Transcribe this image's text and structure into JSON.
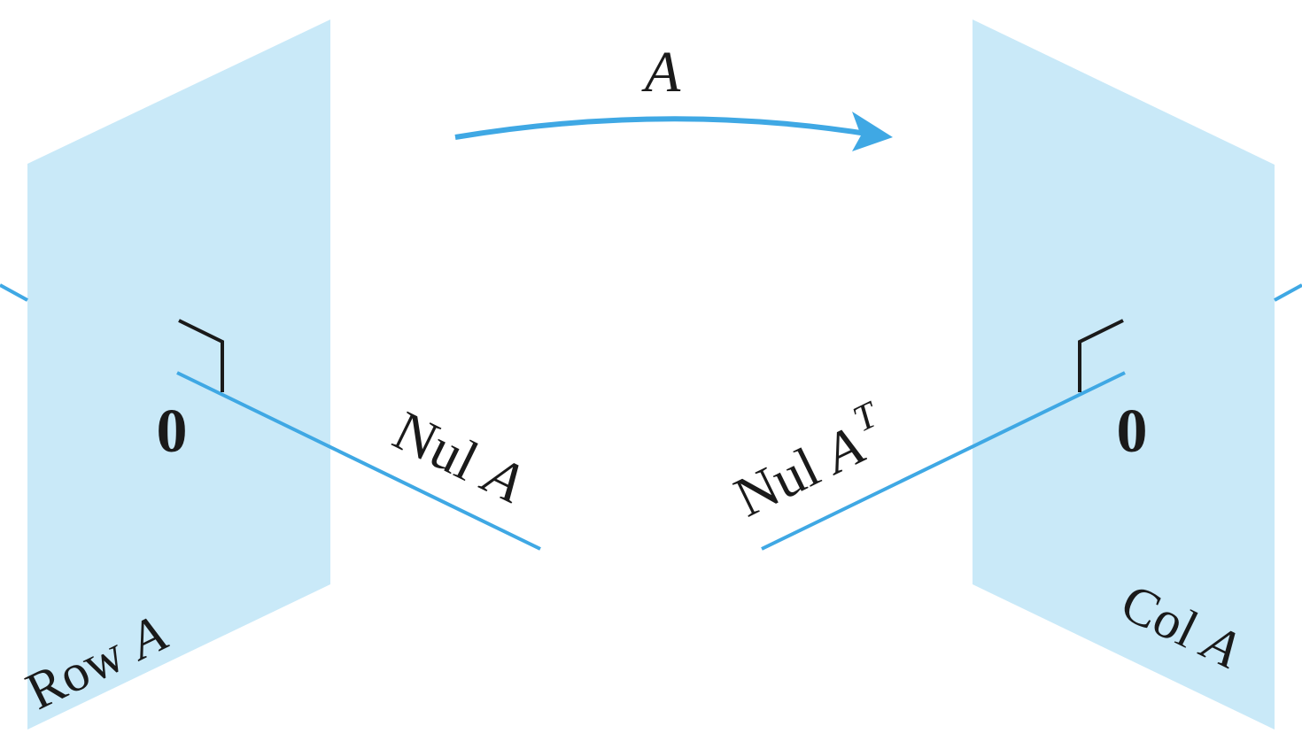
{
  "labels": {
    "map_letter": "A",
    "zero_left": "0",
    "zero_right": "0",
    "nul_a_word": "Nul",
    "nul_a_letter": "A",
    "nul_at_word": "Nul",
    "nul_at_letter": "A",
    "nul_at_superscript": "T",
    "row_a_word": "Row",
    "row_a_letter": "A",
    "col_a_word": "Col",
    "col_a_letter": "A"
  },
  "colors": {
    "plane_fill": "#c9e9f8",
    "line_blue": "#3fa8e4",
    "arrow_blue": "#3fa8e4",
    "right_angle_marker": "#1a1a1a",
    "text": "#1a1a1a"
  }
}
